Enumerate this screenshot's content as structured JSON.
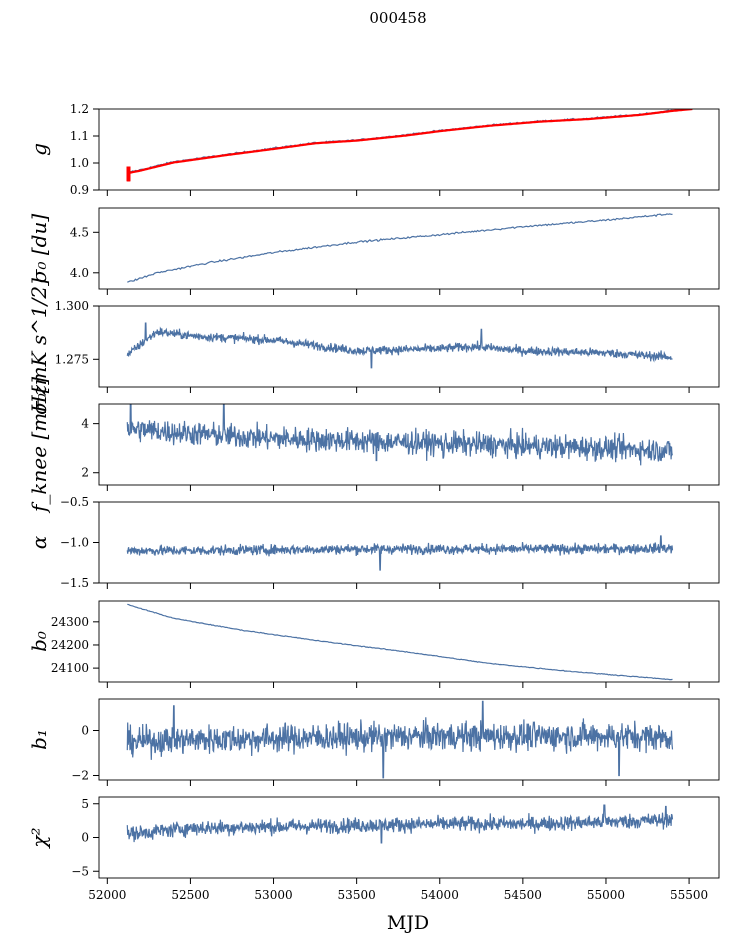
{
  "figure": {
    "title": "000458",
    "xlabel": "MJD"
  },
  "chart_data": {
    "type": "line",
    "title": "000458",
    "xlabel": "MJD",
    "xlim": [
      51950,
      55680
    ],
    "x_ticks": [
      "52000",
      "52500",
      "53000",
      "53500",
      "54000",
      "54500",
      "55000",
      "55500"
    ],
    "series_color": "#4c72a4",
    "overlay_color": "#ff0000",
    "panels": [
      {
        "id": "g",
        "ylabel": "g",
        "ylim": [
          0.9,
          1.2
        ],
        "yticks": [
          "0.9",
          "1.0",
          "1.1",
          "1.2"
        ],
        "series": [
          {
            "name": "g",
            "x": [
              52120,
              52200,
              52400,
              52700,
              53000,
              53250,
              53500,
              53800,
              54000,
              54300,
              54600,
              54900,
              55200,
              55400
            ],
            "y": [
              0.965,
              0.975,
              1.005,
              1.03,
              1.055,
              1.075,
              1.085,
              1.105,
              1.12,
              1.14,
              1.155,
              1.165,
              1.18,
              1.195
            ]
          },
          {
            "name": "g-model",
            "x": [
              52120,
              52200,
              52400,
              52700,
              53000,
              53250,
              53500,
              53800,
              54000,
              54300,
              54600,
              54900,
              55200,
              55400,
              55520
            ],
            "y": [
              0.962,
              0.972,
              1.002,
              1.028,
              1.052,
              1.073,
              1.083,
              1.102,
              1.118,
              1.138,
              1.153,
              1.163,
              1.178,
              1.193,
              1.2
            ]
          }
        ]
      },
      {
        "id": "sigma0_du",
        "ylabel": "σ₀ [du]",
        "ylim": [
          3.8,
          4.8
        ],
        "yticks": [
          "4.0",
          "4.5"
        ],
        "series": [
          {
            "name": "sigma0_du",
            "x": [
              52120,
              52300,
              52600,
              53000,
              53500,
              54000,
              54500,
              55000,
              55400
            ],
            "y": [
              3.88,
              4.0,
              4.12,
              4.25,
              4.38,
              4.47,
              4.57,
              4.65,
              4.73
            ]
          }
        ]
      },
      {
        "id": "sigma0_mK",
        "ylabel": "σ₀[mK s^1/2]",
        "ylim": [
          1.262,
          1.3
        ],
        "yticks": [
          "1.275",
          "1.300"
        ],
        "series": [
          {
            "name": "sigma0_mK",
            "x": [
              52120,
              52300,
              52500,
              53000,
              53500,
              54000,
              54200,
              54500,
              55000,
              55400
            ],
            "y": [
              1.277,
              1.288,
              1.286,
              1.284,
              1.279,
              1.28,
              1.281,
              1.279,
              1.278,
              1.276
            ]
          }
        ]
      },
      {
        "id": "fknee",
        "ylabel": "f_knee [mHz]",
        "ylim": [
          1.5,
          4.8
        ],
        "yticks": [
          "2",
          "4"
        ],
        "series": [
          {
            "name": "fknee",
            "x": [
              52120,
              52500,
              53000,
              53500,
              54000,
              54500,
              55000,
              55400
            ],
            "y": [
              3.8,
              3.6,
              3.4,
              3.3,
              3.2,
              3.1,
              3.0,
              2.9
            ]
          }
        ]
      },
      {
        "id": "alpha",
        "ylabel": "α",
        "ylim": [
          -1.5,
          -0.5
        ],
        "yticks": [
          "−1.5",
          "−1.0",
          "−0.5"
        ],
        "series": [
          {
            "name": "alpha",
            "x": [
              52120,
              52500,
              53000,
              53500,
              54000,
              54500,
              55000,
              55400
            ],
            "y": [
              -1.1,
              -1.1,
              -1.09,
              -1.08,
              -1.08,
              -1.08,
              -1.08,
              -1.07
            ]
          }
        ]
      },
      {
        "id": "b0",
        "ylabel": "b₀",
        "ylim": [
          24040,
          24390
        ],
        "yticks": [
          "24100",
          "24200",
          "24300"
        ],
        "series": [
          {
            "name": "b0",
            "x": [
              52120,
              52400,
              52800,
              53300,
              53800,
              54300,
              54800,
              55400
            ],
            "y": [
              24375,
              24315,
              24265,
              24215,
              24170,
              24120,
              24085,
              24050
            ]
          }
        ]
      },
      {
        "id": "b1",
        "ylabel": "b₁",
        "ylim": [
          -2.2,
          1.4
        ],
        "yticks": [
          "−2",
          "0"
        ],
        "series": [
          {
            "name": "b1",
            "x": [
              52120,
              52500,
              53000,
              53500,
              54000,
              54500,
              55000,
              55400
            ],
            "y": [
              -0.5,
              -0.4,
              -0.35,
              -0.3,
              -0.25,
              -0.25,
              -0.25,
              -0.3
            ]
          }
        ]
      },
      {
        "id": "chi2",
        "ylabel": "χ²",
        "ylim": [
          -6,
          6
        ],
        "yticks": [
          "−5",
          "0",
          "5"
        ],
        "series": [
          {
            "name": "chi2",
            "x": [
              52120,
              52500,
              53000,
              53500,
              54000,
              54500,
              55000,
              55400
            ],
            "y": [
              0.5,
              1.4,
              1.6,
              1.8,
              2.0,
              2.0,
              2.3,
              2.6
            ]
          }
        ]
      }
    ]
  }
}
